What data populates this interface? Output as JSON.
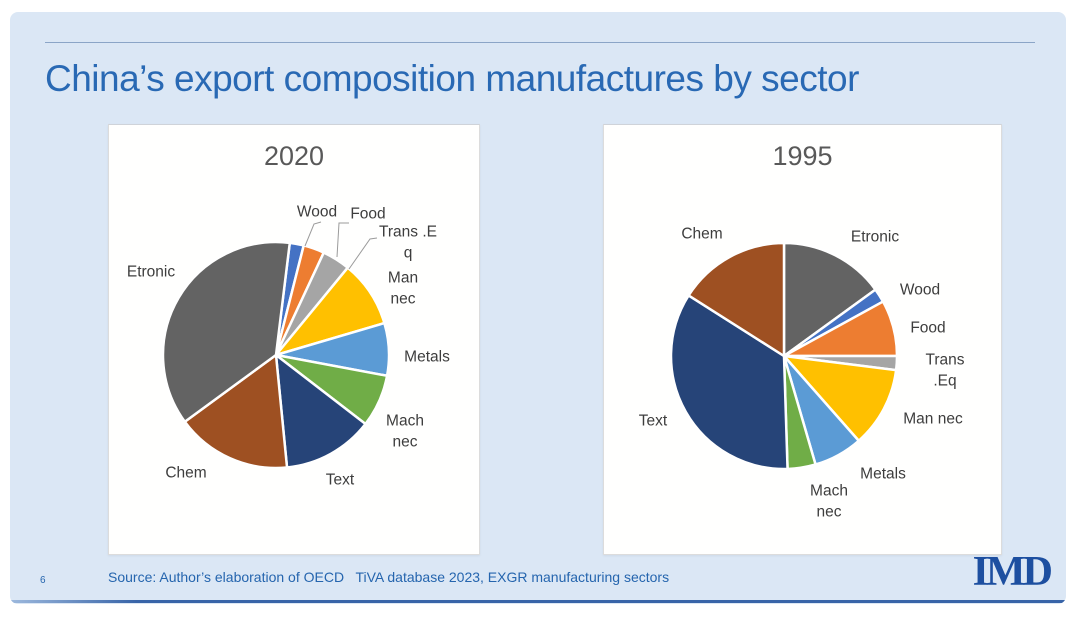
{
  "slide": {
    "title": "China’s export composition manufactures by sector",
    "page_number": "6",
    "source_note": "Source: Author’s elaboration of OECD   TiVA database 2023, EXGR manufacturing sectors",
    "logo_text": "IMD",
    "accent_color": "#2969B4",
    "background_color": "#DBE7F5"
  },
  "charts": [
    {
      "labels": [
        {
          "id": "etronic",
          "text": "Etronic"
        },
        {
          "id": "wood",
          "text": "Wood"
        },
        {
          "id": "food",
          "text": "Food"
        },
        {
          "id": "trans-eq",
          "text": "Trans .E\nq"
        },
        {
          "id": "man-nec",
          "text": "Man\nnec"
        },
        {
          "id": "metals",
          "text": "Metals"
        },
        {
          "id": "mach-nec",
          "text": "Mach\nnec"
        },
        {
          "id": "text",
          "text": "Text"
        },
        {
          "id": "chem",
          "text": "Chem"
        }
      ]
    },
    {
      "labels": [
        {
          "id": "chem",
          "text": "Chem"
        },
        {
          "id": "etronic",
          "text": "Etronic"
        },
        {
          "id": "wood",
          "text": "Wood"
        },
        {
          "id": "food",
          "text": "Food"
        },
        {
          "id": "trans-eq",
          "text": "Trans .Eq"
        },
        {
          "id": "man-nec",
          "text": "Man nec"
        },
        {
          "id": "metals",
          "text": "Metals"
        },
        {
          "id": "mach-nec",
          "text": "Mach\nnec"
        },
        {
          "id": "text",
          "text": "Text"
        }
      ]
    }
  ],
  "chart_data": [
    {
      "type": "pie",
      "title": "2020",
      "categories": [
        "Wood",
        "Food",
        "Trans .Eq",
        "Man nec",
        "Metals",
        "Mach nec",
        "Text",
        "Chem",
        "Etronic"
      ],
      "values": [
        2,
        3,
        4,
        9.5,
        7.5,
        7.5,
        13,
        16.5,
        37
      ],
      "colors": [
        "#4472C4",
        "#ED7D31",
        "#A5A5A5",
        "#FFC000",
        "#5B9BD5",
        "#70AD47",
        "#264478",
        "#9E5022",
        "#636363"
      ],
      "start_angle_deg": 7,
      "values_are_estimates": true,
      "legend": "none",
      "data_labels": "category_names_only"
    },
    {
      "type": "pie",
      "title": "1995",
      "categories": [
        "Etronic",
        "Wood",
        "Food",
        "Trans .Eq",
        "Man nec",
        "Metals",
        "Mach nec",
        "Text",
        "Chem"
      ],
      "values": [
        15,
        2,
        8,
        2,
        11.5,
        7,
        4,
        34.5,
        16
      ],
      "colors": [
        "#636363",
        "#4472C4",
        "#ED7D31",
        "#A5A5A5",
        "#FFC000",
        "#5B9BD5",
        "#70AD47",
        "#264478",
        "#9E5022"
      ],
      "start_angle_deg": 0,
      "values_are_estimates": true,
      "legend": "none",
      "data_labels": "category_names_only"
    }
  ]
}
